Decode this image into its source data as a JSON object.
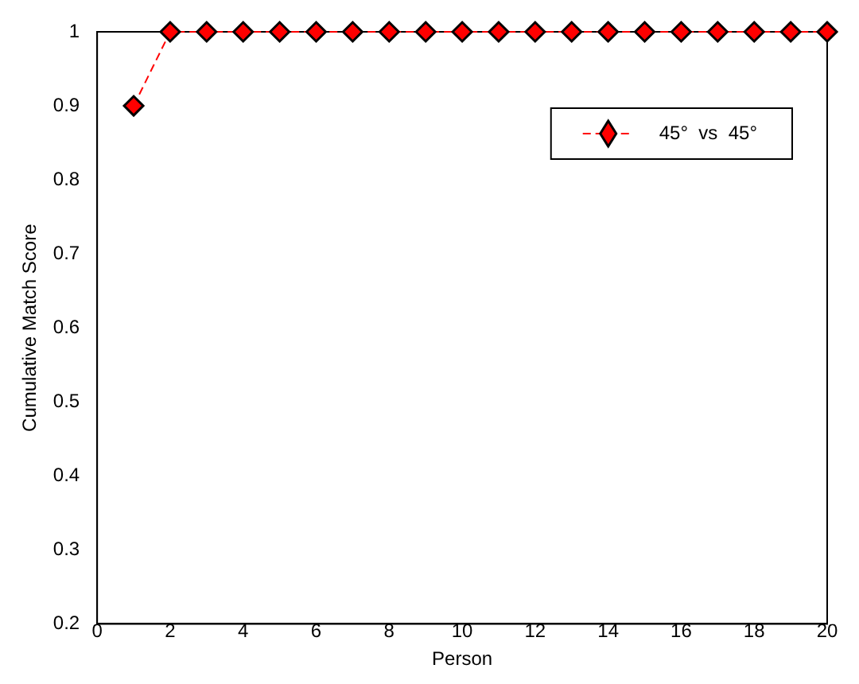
{
  "chart_data": {
    "type": "line",
    "xlabel": "Person",
    "ylabel": "Cumulative Match Score",
    "x": [
      1,
      2,
      3,
      4,
      5,
      6,
      7,
      8,
      9,
      10,
      11,
      12,
      13,
      14,
      15,
      16,
      17,
      18,
      19,
      20
    ],
    "series": [
      {
        "name": "45°  vs  45°",
        "color": "#ff0000",
        "values": [
          0.9,
          1,
          1,
          1,
          1,
          1,
          1,
          1,
          1,
          1,
          1,
          1,
          1,
          1,
          1,
          1,
          1,
          1,
          1,
          1
        ]
      }
    ],
    "xlim": [
      0,
      20
    ],
    "xticks": [
      0,
      2,
      4,
      6,
      8,
      10,
      12,
      14,
      16,
      18,
      20
    ],
    "ylim": [
      0.2,
      1
    ],
    "yticks": [
      0.2,
      0.3,
      0.4,
      0.5,
      0.6,
      0.7,
      0.8,
      0.9,
      1
    ],
    "grid": false,
    "legend": "top right",
    "marker": "diamond",
    "line_style": "dashed"
  }
}
